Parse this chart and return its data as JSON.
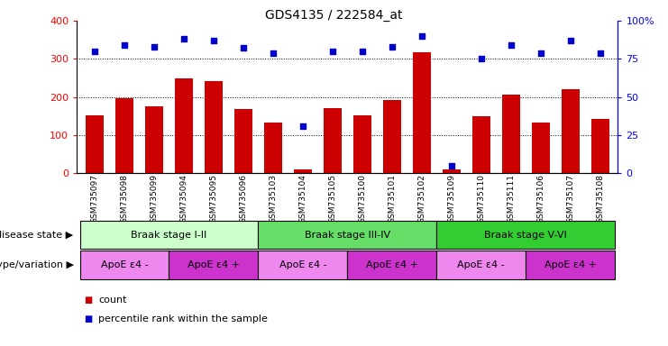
{
  "title": "GDS4135 / 222584_at",
  "samples": [
    "GSM735097",
    "GSM735098",
    "GSM735099",
    "GSM735094",
    "GSM735095",
    "GSM735096",
    "GSM735103",
    "GSM735104",
    "GSM735105",
    "GSM735100",
    "GSM735101",
    "GSM735102",
    "GSM735109",
    "GSM735110",
    "GSM735111",
    "GSM735106",
    "GSM735107",
    "GSM735108"
  ],
  "counts": [
    152,
    197,
    175,
    248,
    242,
    167,
    133,
    10,
    170,
    152,
    192,
    318,
    10,
    148,
    207,
    133,
    220,
    142
  ],
  "percentiles": [
    80,
    84,
    83,
    88,
    87,
    82,
    79,
    31,
    80,
    80,
    83,
    90,
    5,
    75,
    84,
    79,
    87,
    79
  ],
  "ylim_left": [
    0,
    400
  ],
  "ylim_right": [
    0,
    100
  ],
  "yticks_left": [
    0,
    100,
    200,
    300,
    400
  ],
  "yticks_right": [
    0,
    25,
    50,
    75,
    100
  ],
  "bar_color": "#cc0000",
  "dot_color": "#0000cc",
  "disease_stages": [
    {
      "label": "Braak stage I-II",
      "start": 0,
      "end": 6,
      "color": "#ccffcc"
    },
    {
      "label": "Braak stage III-IV",
      "start": 6,
      "end": 12,
      "color": "#66dd66"
    },
    {
      "label": "Braak stage V-VI",
      "start": 12,
      "end": 18,
      "color": "#33cc33"
    }
  ],
  "genotype_groups": [
    {
      "label": "ApoE ε4 -",
      "start": 0,
      "end": 3,
      "color": "#ee88ee"
    },
    {
      "label": "ApoE ε4 +",
      "start": 3,
      "end": 6,
      "color": "#cc33cc"
    },
    {
      "label": "ApoE ε4 -",
      "start": 6,
      "end": 9,
      "color": "#ee88ee"
    },
    {
      "label": "ApoE ε4 +",
      "start": 9,
      "end": 12,
      "color": "#cc33cc"
    },
    {
      "label": "ApoE ε4 -",
      "start": 12,
      "end": 15,
      "color": "#ee88ee"
    },
    {
      "label": "ApoE ε4 +",
      "start": 15,
      "end": 18,
      "color": "#cc33cc"
    }
  ],
  "label_disease": "disease state",
  "label_genotype": "genotype/variation",
  "legend_count": "count",
  "legend_pct": "percentile rank within the sample",
  "background_color": "#ffffff"
}
